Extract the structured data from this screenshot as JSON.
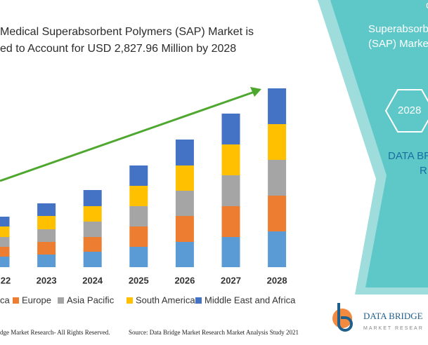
{
  "chart_data": {
    "type": "bar",
    "stacked": true,
    "title": [
      "Medical Superabsorbent Polymers (SAP) Market is",
      "ed to Account for USD 2,827.96 Million by 2028"
    ],
    "categories": [
      "22",
      "2023",
      "2024",
      "2025",
      "2026",
      "2027",
      "2028"
    ],
    "series": [
      {
        "name": "ca",
        "color": "#5b9bd5",
        "values": [
          15,
          18,
          22,
          29,
          36,
          43,
          51
        ]
      },
      {
        "name": "Europe",
        "color": "#ed7d31",
        "values": [
          14,
          18,
          21,
          29,
          37,
          44,
          51
        ]
      },
      {
        "name": "Asia Pacific",
        "color": "#a5a5a5",
        "values": [
          14,
          18,
          22,
          29,
          36,
          44,
          51
        ]
      },
      {
        "name": "South America",
        "color": "#ffc000",
        "values": [
          15,
          19,
          22,
          29,
          36,
          44,
          51
        ]
      },
      {
        "name": "Middle East and Africa",
        "color": "#4472c4",
        "values": [
          14,
          18,
          23,
          29,
          37,
          44,
          51
        ]
      }
    ]
  },
  "panel": {
    "top": "c",
    "line1": "Superabsorbent",
    "line2": "(SAP) Marke",
    "year": "2028",
    "brand1": "DATA BR",
    "brand2": "R"
  },
  "footer": {
    "rights": "dge Market Research- All Rights Reserved.",
    "source": "Source: Data Bridge Market Research Market Analysis Study 2021"
  },
  "logo": {
    "name": "DATA BRIDGE",
    "tag": "MARKET RESEAR"
  }
}
